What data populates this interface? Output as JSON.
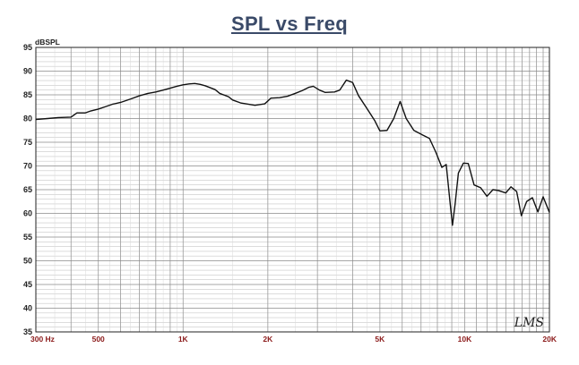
{
  "chart_data": {
    "type": "line",
    "title": "SPL vs Freq",
    "ylabel": "dBSPL",
    "xlabel": "",
    "xscale": "log",
    "xlim": [
      300,
      20000
    ],
    "ylim": [
      35,
      95
    ],
    "grid": true,
    "yticks": [
      35,
      40,
      45,
      50,
      55,
      60,
      65,
      70,
      75,
      80,
      85,
      90,
      95
    ],
    "xtick_labels": [
      {
        "value": 300,
        "label": "300 Hz"
      },
      {
        "value": 500,
        "label": "500"
      },
      {
        "value": 1000,
        "label": "1K"
      },
      {
        "value": 2000,
        "label": "2K"
      },
      {
        "value": 5000,
        "label": "5K"
      },
      {
        "value": 10000,
        "label": "10K"
      },
      {
        "value": 20000,
        "label": "20K"
      }
    ],
    "line_color": "#111111",
    "series": [
      {
        "points": [
          [
            300,
            79.8
          ],
          [
            330,
            80.0
          ],
          [
            360,
            80.2
          ],
          [
            400,
            80.3
          ],
          [
            420,
            81.2
          ],
          [
            450,
            81.2
          ],
          [
            470,
            81.6
          ],
          [
            500,
            82.0
          ],
          [
            530,
            82.5
          ],
          [
            560,
            83.0
          ],
          [
            600,
            83.4
          ],
          [
            650,
            84.1
          ],
          [
            700,
            84.8
          ],
          [
            750,
            85.3
          ],
          [
            800,
            85.6
          ],
          [
            850,
            86.0
          ],
          [
            900,
            86.4
          ],
          [
            950,
            86.8
          ],
          [
            1000,
            87.1
          ],
          [
            1050,
            87.3
          ],
          [
            1100,
            87.4
          ],
          [
            1150,
            87.2
          ],
          [
            1200,
            86.9
          ],
          [
            1300,
            86.1
          ],
          [
            1350,
            85.3
          ],
          [
            1450,
            84.6
          ],
          [
            1500,
            83.9
          ],
          [
            1600,
            83.3
          ],
          [
            1800,
            82.8
          ],
          [
            1950,
            83.1
          ],
          [
            2050,
            84.3
          ],
          [
            2200,
            84.4
          ],
          [
            2350,
            84.7
          ],
          [
            2500,
            85.3
          ],
          [
            2650,
            85.9
          ],
          [
            2800,
            86.6
          ],
          [
            2900,
            86.8
          ],
          [
            3050,
            86.0
          ],
          [
            3200,
            85.5
          ],
          [
            3450,
            85.6
          ],
          [
            3600,
            86.0
          ],
          [
            3800,
            88.1
          ],
          [
            4000,
            87.6
          ],
          [
            4200,
            84.8
          ],
          [
            4500,
            82.1
          ],
          [
            4800,
            79.5
          ],
          [
            5000,
            77.4
          ],
          [
            5300,
            77.5
          ],
          [
            5600,
            80.0
          ],
          [
            5900,
            83.6
          ],
          [
            6200,
            80.0
          ],
          [
            6600,
            77.5
          ],
          [
            7100,
            76.5
          ],
          [
            7500,
            75.8
          ],
          [
            7900,
            72.9
          ],
          [
            8300,
            69.7
          ],
          [
            8600,
            70.3
          ],
          [
            8850,
            63.0
          ],
          [
            9050,
            57.5
          ],
          [
            9250,
            62.0
          ],
          [
            9500,
            68.5
          ],
          [
            9900,
            70.6
          ],
          [
            10300,
            70.5
          ],
          [
            10800,
            66.0
          ],
          [
            11400,
            65.4
          ],
          [
            12000,
            63.6
          ],
          [
            12600,
            65.0
          ],
          [
            13200,
            64.8
          ],
          [
            14000,
            64.3
          ],
          [
            14600,
            65.6
          ],
          [
            15300,
            64.6
          ],
          [
            15900,
            59.5
          ],
          [
            16600,
            62.5
          ],
          [
            17400,
            63.3
          ],
          [
            18200,
            60.3
          ],
          [
            19000,
            63.5
          ],
          [
            20000,
            60.2
          ]
        ]
      }
    ]
  },
  "watermark": "LMS"
}
